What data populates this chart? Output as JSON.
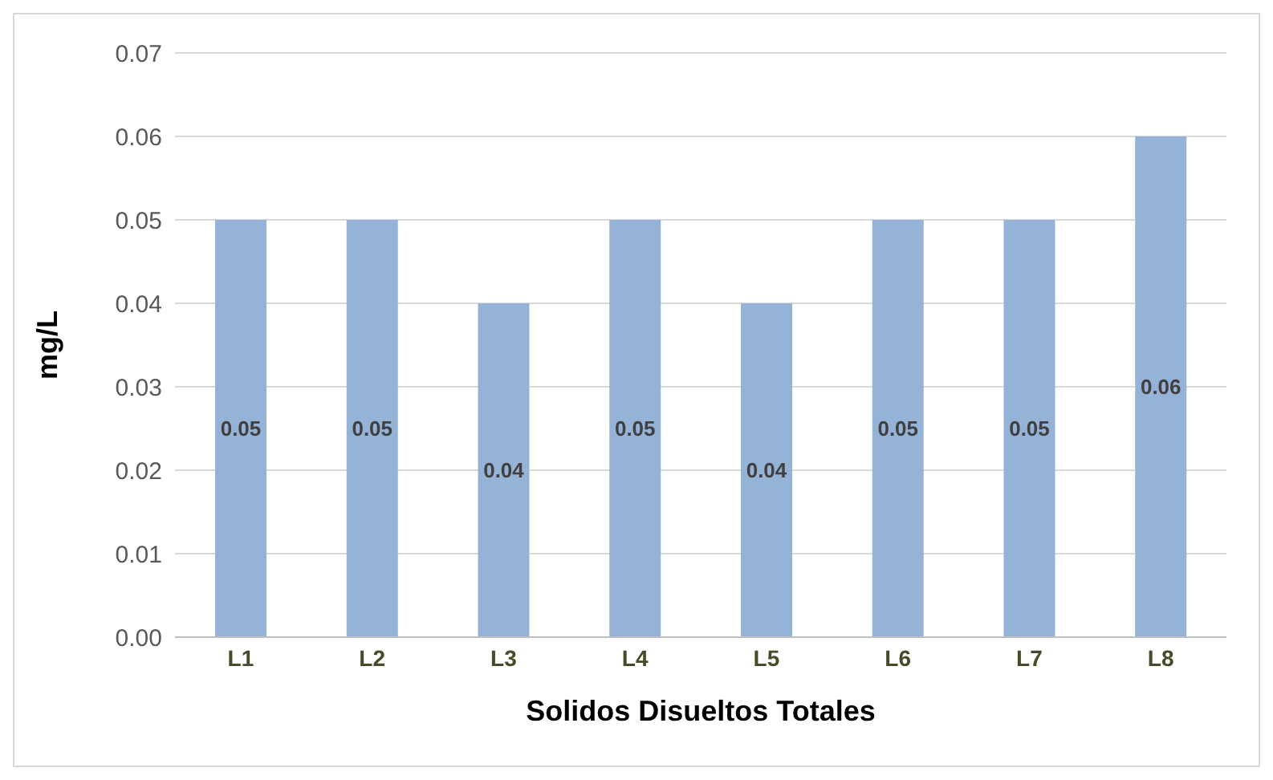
{
  "chart_data": {
    "type": "bar",
    "xlabel": "Solidos Disueltos Totales",
    "ylabel": "mg/L",
    "categories": [
      "L1",
      "L2",
      "L3",
      "L4",
      "L5",
      "L6",
      "L7",
      "L8"
    ],
    "values": [
      0.05,
      0.05,
      0.04,
      0.05,
      0.04,
      0.05,
      0.05,
      0.06
    ],
    "color": "#95b3d7",
    "ylim": [
      0,
      0.07
    ],
    "yticks": [
      {
        "value": 0,
        "label": "0.00"
      },
      0.01,
      0.02,
      0.03,
      0.04,
      0.05,
      0.06,
      0.07
    ],
    "grid": "y",
    "data_labels": true
  }
}
